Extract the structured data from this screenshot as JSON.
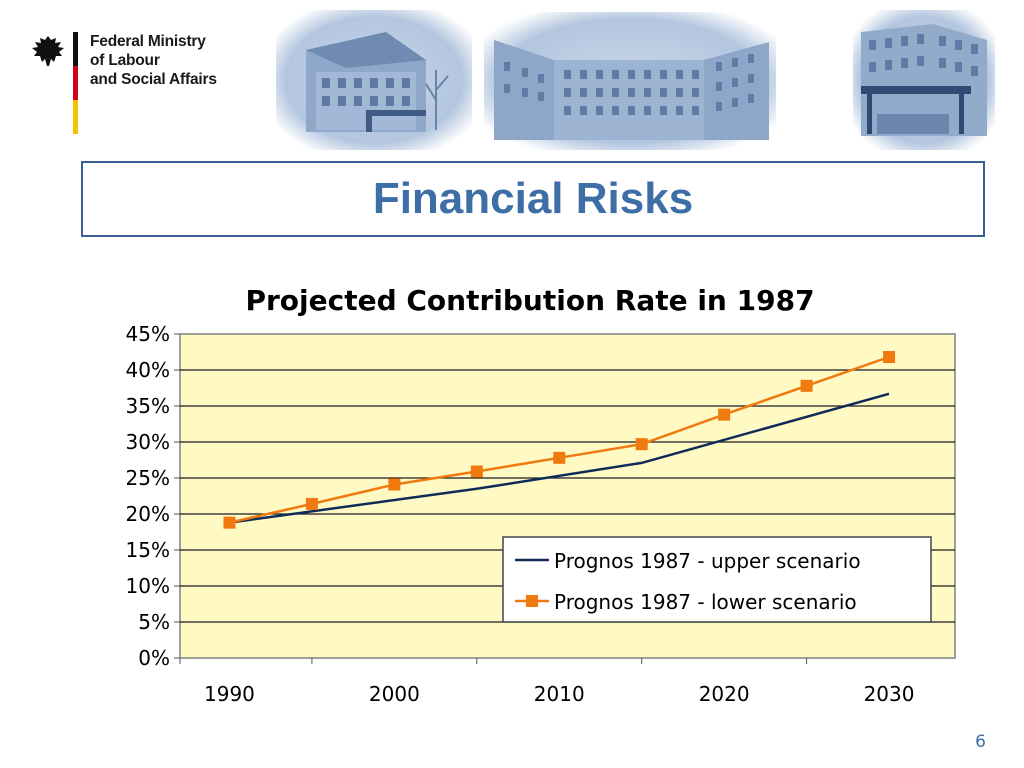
{
  "header": {
    "ministry_lines": [
      "Federal Ministry",
      "of Labour",
      "and Social Affairs"
    ]
  },
  "slide": {
    "title": "Financial Risks",
    "page_number": "6"
  },
  "colors": {
    "title_blue": "#3e6ea6",
    "plot_bg": "#fff9c4",
    "upper_line": "#0f2c59",
    "lower_line": "#f07a10"
  },
  "chart_data": {
    "type": "line",
    "title": "Projected Contribution Rate in 1987",
    "xlabel": "",
    "ylabel": "",
    "x_ticks": [
      1990,
      2000,
      2010,
      2020,
      2030
    ],
    "xlim": [
      1987,
      2034
    ],
    "ylim": [
      0,
      45
    ],
    "y_ticks": [
      "0%",
      "5%",
      "10%",
      "15%",
      "20%",
      "25%",
      "30%",
      "35%",
      "40%",
      "45%"
    ],
    "grid": true,
    "legend_position": "bottom-right",
    "series": [
      {
        "name": "Prognos 1987 - upper scenario",
        "marker": "none",
        "x": [
          1990,
          2005,
          2015,
          2030
        ],
        "y": [
          18.8,
          23.5,
          27.1,
          36.7
        ]
      },
      {
        "name": "Prognos 1987 - lower scenario",
        "marker": "square",
        "x": [
          1990,
          1995,
          2000,
          2005,
          2010,
          2015,
          2020,
          2025,
          2030
        ],
        "y": [
          18.8,
          21.4,
          24.1,
          25.9,
          27.8,
          29.7,
          33.8,
          37.8,
          41.8
        ]
      }
    ]
  }
}
